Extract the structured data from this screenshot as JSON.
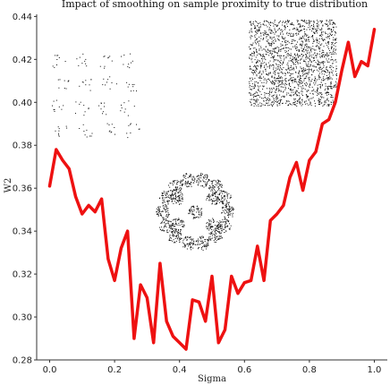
{
  "chart_data": {
    "type": "line",
    "title": "Impact of smoothing on sample proximity to true distribution",
    "xlabel": "Sigma",
    "ylabel": "W2",
    "xlim": [
      -0.04,
      1.04
    ],
    "ylim": [
      0.28,
      0.441
    ],
    "xticks": [
      "0.0",
      "0.2",
      "0.4",
      "0.6",
      "0.8",
      "1.0"
    ],
    "yticks": [
      "0.28",
      "0.30",
      "0.32",
      "0.34",
      "0.36",
      "0.38",
      "0.40",
      "0.42",
      "0.44"
    ],
    "grid": false,
    "series": [
      {
        "color": "#ee1111",
        "x": [
          0.0,
          0.02,
          0.04,
          0.06,
          0.08,
          0.1,
          0.12,
          0.14,
          0.16,
          0.18,
          0.2,
          0.22,
          0.24,
          0.26,
          0.28,
          0.3,
          0.32,
          0.34,
          0.36,
          0.38,
          0.4,
          0.42,
          0.44,
          0.46,
          0.48,
          0.5,
          0.52,
          0.54,
          0.56,
          0.58,
          0.6,
          0.62,
          0.64,
          0.66,
          0.68,
          0.7,
          0.72,
          0.74,
          0.76,
          0.78,
          0.8,
          0.82,
          0.84,
          0.86,
          0.88,
          0.9,
          0.92,
          0.94,
          0.96,
          0.98,
          1.0
        ],
        "values": [
          0.361,
          0.378,
          0.373,
          0.369,
          0.356,
          0.348,
          0.352,
          0.349,
          0.355,
          0.327,
          0.317,
          0.332,
          0.34,
          0.29,
          0.315,
          0.309,
          0.288,
          0.325,
          0.298,
          0.291,
          0.288,
          0.285,
          0.308,
          0.307,
          0.298,
          0.319,
          0.288,
          0.294,
          0.319,
          0.311,
          0.316,
          0.317,
          0.333,
          0.317,
          0.345,
          0.348,
          0.352,
          0.365,
          0.372,
          0.359,
          0.373,
          0.377,
          0.39,
          0.392,
          0.4,
          0.415,
          0.428,
          0.412,
          0.419,
          0.417,
          0.434
        ]
      }
    ],
    "insets": [
      {
        "pattern": "sparse-blobs",
        "anchor_sigma": 0.0
      },
      {
        "pattern": "hexagonal-ring-blobs",
        "anchor_sigma": 0.3
      },
      {
        "pattern": "uniform-square",
        "anchor_sigma": 0.8
      }
    ]
  }
}
